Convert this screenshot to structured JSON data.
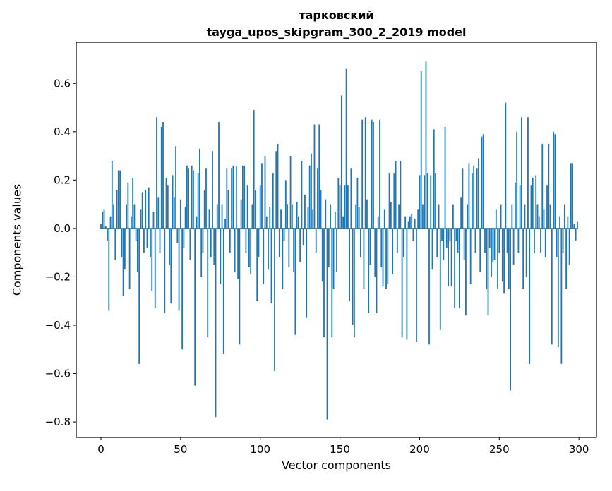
{
  "chart_data": {
    "type": "bar",
    "title_lines": [
      "тарковский",
      "tayga_upos_skipgram_300_2_2019 model"
    ],
    "xlabel": "Vector components",
    "ylabel": "Components values",
    "bar_color": "#1f77b4",
    "legend": "none",
    "grid": false,
    "n_components": 300,
    "xlim": [
      -15.5,
      311
    ],
    "ylim": [
      -0.864,
      0.77
    ],
    "xticks": [
      0,
      50,
      100,
      150,
      200,
      250,
      300
    ],
    "xtick_labels": [
      "0",
      "50",
      "100",
      "150",
      "200",
      "250",
      "300"
    ],
    "ytick_values": [
      0.6,
      0.4,
      0.2,
      0.0,
      -0.2,
      -0.4,
      -0.6,
      -0.8
    ],
    "ytick_labels": [
      "0.6",
      "0.4",
      "0.2",
      "0.0",
      "−0.2",
      "−0.4",
      "−0.6",
      "−0.8"
    ],
    "x_is_index": true,
    "values": [
      0.02,
      0.07,
      0.08,
      0.01,
      -0.05,
      -0.34,
      0.05,
      0.28,
      0.1,
      -0.13,
      0.16,
      0.24,
      0.24,
      -0.12,
      -0.28,
      -0.17,
      0.1,
      0.19,
      -0.25,
      0.05,
      0.21,
      0.1,
      -0.05,
      -0.18,
      -0.56,
      0.08,
      0.15,
      -0.1,
      0.16,
      -0.08,
      0.17,
      -0.12,
      -0.26,
      0.07,
      -0.33,
      0.46,
      0.13,
      -0.1,
      0.42,
      0.44,
      -0.35,
      0.21,
      0.18,
      -0.15,
      -0.31,
      0.22,
      0.13,
      0.34,
      -0.06,
      -0.34,
      0.12,
      -0.5,
      -0.08,
      0.09,
      0.26,
      0.25,
      -0.13,
      0.26,
      0.24,
      -0.65,
      0.05,
      0.23,
      0.33,
      -0.2,
      -0.1,
      0.16,
      0.25,
      -0.45,
      0.08,
      -0.12,
      0.32,
      -0.15,
      -0.78,
      0.1,
      0.44,
      -0.23,
      0.1,
      -0.52,
      0.04,
      0.25,
      0.16,
      -0.1,
      0.25,
      0.26,
      -0.18,
      0.26,
      -0.21,
      -0.48,
      0.12,
      0.26,
      0.26,
      -0.1,
      0.18,
      -0.16,
      -0.19,
      0.1,
      0.49,
      0.16,
      -0.3,
      -0.12,
      0.18,
      0.27,
      -0.23,
      0.3,
      0.05,
      -0.17,
      0.09,
      -0.31,
      0.23,
      -0.59,
      0.32,
      0.35,
      -0.12,
      0.08,
      -0.25,
      -0.05,
      0.2,
      0.1,
      -0.16,
      0.3,
      0.1,
      -0.18,
      -0.44,
      0.11,
      0.05,
      -0.14,
      0.28,
      -0.07,
      0.14,
      -0.37,
      0.09,
      0.26,
      0.31,
      0.08,
      0.43,
      -0.1,
      0.25,
      0.43,
      0.16,
      -0.22,
      -0.45,
      0.12,
      -0.79,
      -0.16,
      0.1,
      -0.45,
      -0.25,
      0.07,
      -0.18,
      0.21,
      0.18,
      0.55,
      0.05,
      0.18,
      0.66,
      0.18,
      -0.3,
      0.25,
      -0.4,
      -0.45,
      0.1,
      0.21,
      0.09,
      -0.12,
      0.45,
      -0.25,
      0.46,
      0.12,
      -0.35,
      -0.15,
      0.45,
      0.44,
      -0.2,
      -0.35,
      0.05,
      0.45,
      -0.16,
      -0.24,
      0.08,
      -0.25,
      -0.23,
      0.23,
      0.11,
      -0.19,
      0.23,
      0.28,
      -0.1,
      0.1,
      0.28,
      -0.45,
      -0.12,
      0.05,
      -0.46,
      0.03,
      0.05,
      0.06,
      -0.05,
      0.04,
      -0.47,
      0.08,
      0.22,
      0.65,
      0.1,
      0.22,
      0.69,
      0.23,
      -0.48,
      0.22,
      -0.17,
      0.41,
      0.23,
      -0.12,
      0.1,
      -0.42,
      -0.05,
      -0.13,
      0.42,
      -0.08,
      -0.24,
      -0.05,
      -0.24,
      0.1,
      -0.33,
      -0.05,
      -0.1,
      -0.33,
      0.13,
      0.25,
      -0.13,
      -0.36,
      0.1,
      0.27,
      -0.23,
      0.23,
      0.26,
      -0.1,
      0.25,
      0.29,
      -0.18,
      0.38,
      0.39,
      -0.1,
      -0.25,
      -0.36,
      -0.08,
      -0.2,
      -0.14,
      -0.13,
      0.08,
      -0.25,
      -0.1,
      0.1,
      -0.22,
      -0.27,
      0.52,
      -0.1,
      -0.25,
      -0.67,
      0.1,
      -0.15,
      0.19,
      0.4,
      -0.1,
      0.18,
      0.46,
      -0.25,
      0.1,
      -0.2,
      0.46,
      -0.56,
      0.18,
      0.21,
      -0.1,
      0.22,
      0.1,
      0.05,
      -0.1,
      0.35,
      0.08,
      -0.12,
      0.18,
      0.35,
      0.1,
      -0.48,
      0.4,
      0.39,
      -0.12,
      -0.49,
      0.05,
      -0.56,
      -0.1,
      0.1,
      -0.25,
      0.05,
      -0.15,
      0.27,
      0.27,
      0.02,
      -0.05,
      0.03
    ]
  }
}
